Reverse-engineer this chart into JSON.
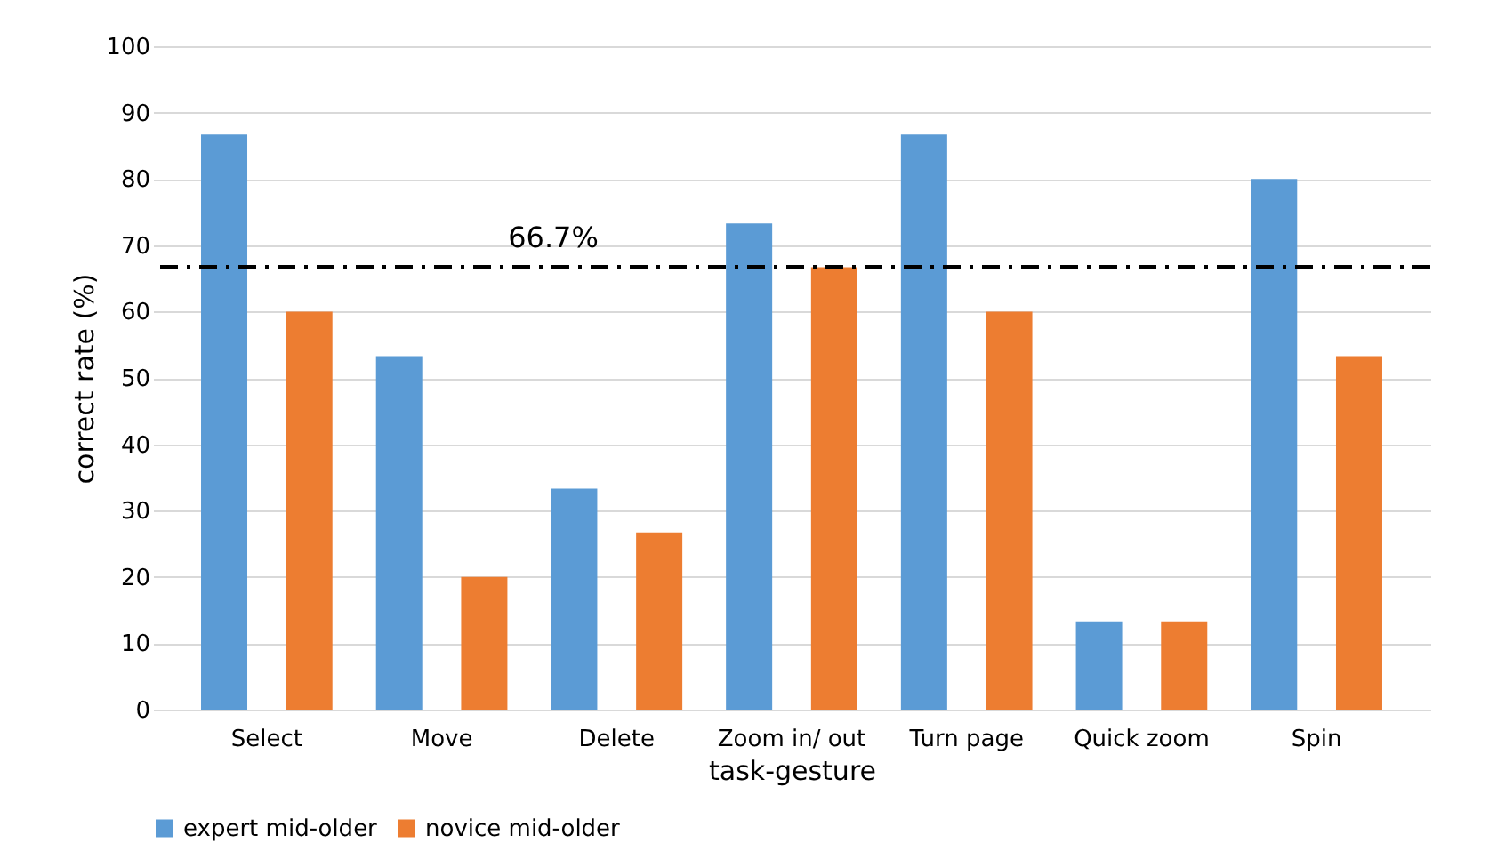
{
  "chart_data": {
    "type": "bar",
    "xlabel": "task-gesture",
    "ylabel": "correct rate (%)",
    "categories": [
      "Select",
      "Move",
      "Delete",
      "Zoom in/ out",
      "Turn page",
      "Quick zoom",
      "Spin"
    ],
    "series": [
      {
        "name": "expert mid-older",
        "color": "#5b9bd5",
        "values": [
          86.7,
          53.3,
          33.3,
          73.3,
          86.7,
          13.3,
          80
        ]
      },
      {
        "name": "novice mid-older",
        "color": "#ed7d31",
        "values": [
          60,
          20,
          26.7,
          66.7,
          60,
          13.3,
          53.3
        ]
      }
    ],
    "ylim": [
      0,
      100
    ],
    "yticks": [
      0,
      10,
      20,
      30,
      40,
      50,
      60,
      70,
      80,
      90,
      100
    ],
    "grid": "y",
    "legend": "bottom",
    "ref_lines": [
      {
        "axis": "y",
        "value": 66.7,
        "label": "66.7%",
        "color": "#000000",
        "line_style": "dashdot"
      }
    ]
  }
}
